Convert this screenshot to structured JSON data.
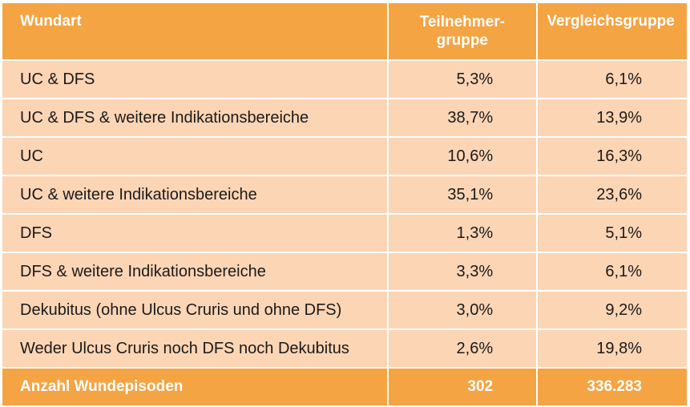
{
  "table": {
    "header": {
      "col1": "Wundart",
      "col2_line1": "Teilnehmer-",
      "col2_line2": "gruppe",
      "col3": "Vergleichsgruppe"
    },
    "rows": [
      {
        "label": "UC & DFS",
        "teilnehmer": "5,3%",
        "vergleich": "6,1%"
      },
      {
        "label": "UC & DFS & weitere Indikationsbereiche",
        "teilnehmer": "38,7%",
        "vergleich": "13,9%"
      },
      {
        "label": "UC",
        "teilnehmer": "10,6%",
        "vergleich": "16,3%"
      },
      {
        "label": "UC & weitere Indikationsbereiche",
        "teilnehmer": "35,1%",
        "vergleich": "23,6%"
      },
      {
        "label": "DFS",
        "teilnehmer": "1,3%",
        "vergleich": "5,1%"
      },
      {
        "label": "DFS & weitere Indikationsbereiche",
        "teilnehmer": "3,3%",
        "vergleich": "6,1%"
      },
      {
        "label": "Dekubitus (ohne Ulcus Cruris und ohne DFS)",
        "teilnehmer": "3,0%",
        "vergleich": "9,2%"
      },
      {
        "label": "Weder Ulcus Cruris noch DFS noch Dekubitus",
        "teilnehmer": "2,6%",
        "vergleich": "19,8%"
      }
    ],
    "footer": {
      "label": "Anzahl Wundepisoden",
      "teilnehmer": "302",
      "vergleich": "336.283"
    }
  },
  "colors": {
    "header_bg": "#f4a443",
    "row_bg": "#fcd5b5",
    "header_text": "#ffffff",
    "row_text": "#1a1a1a"
  }
}
